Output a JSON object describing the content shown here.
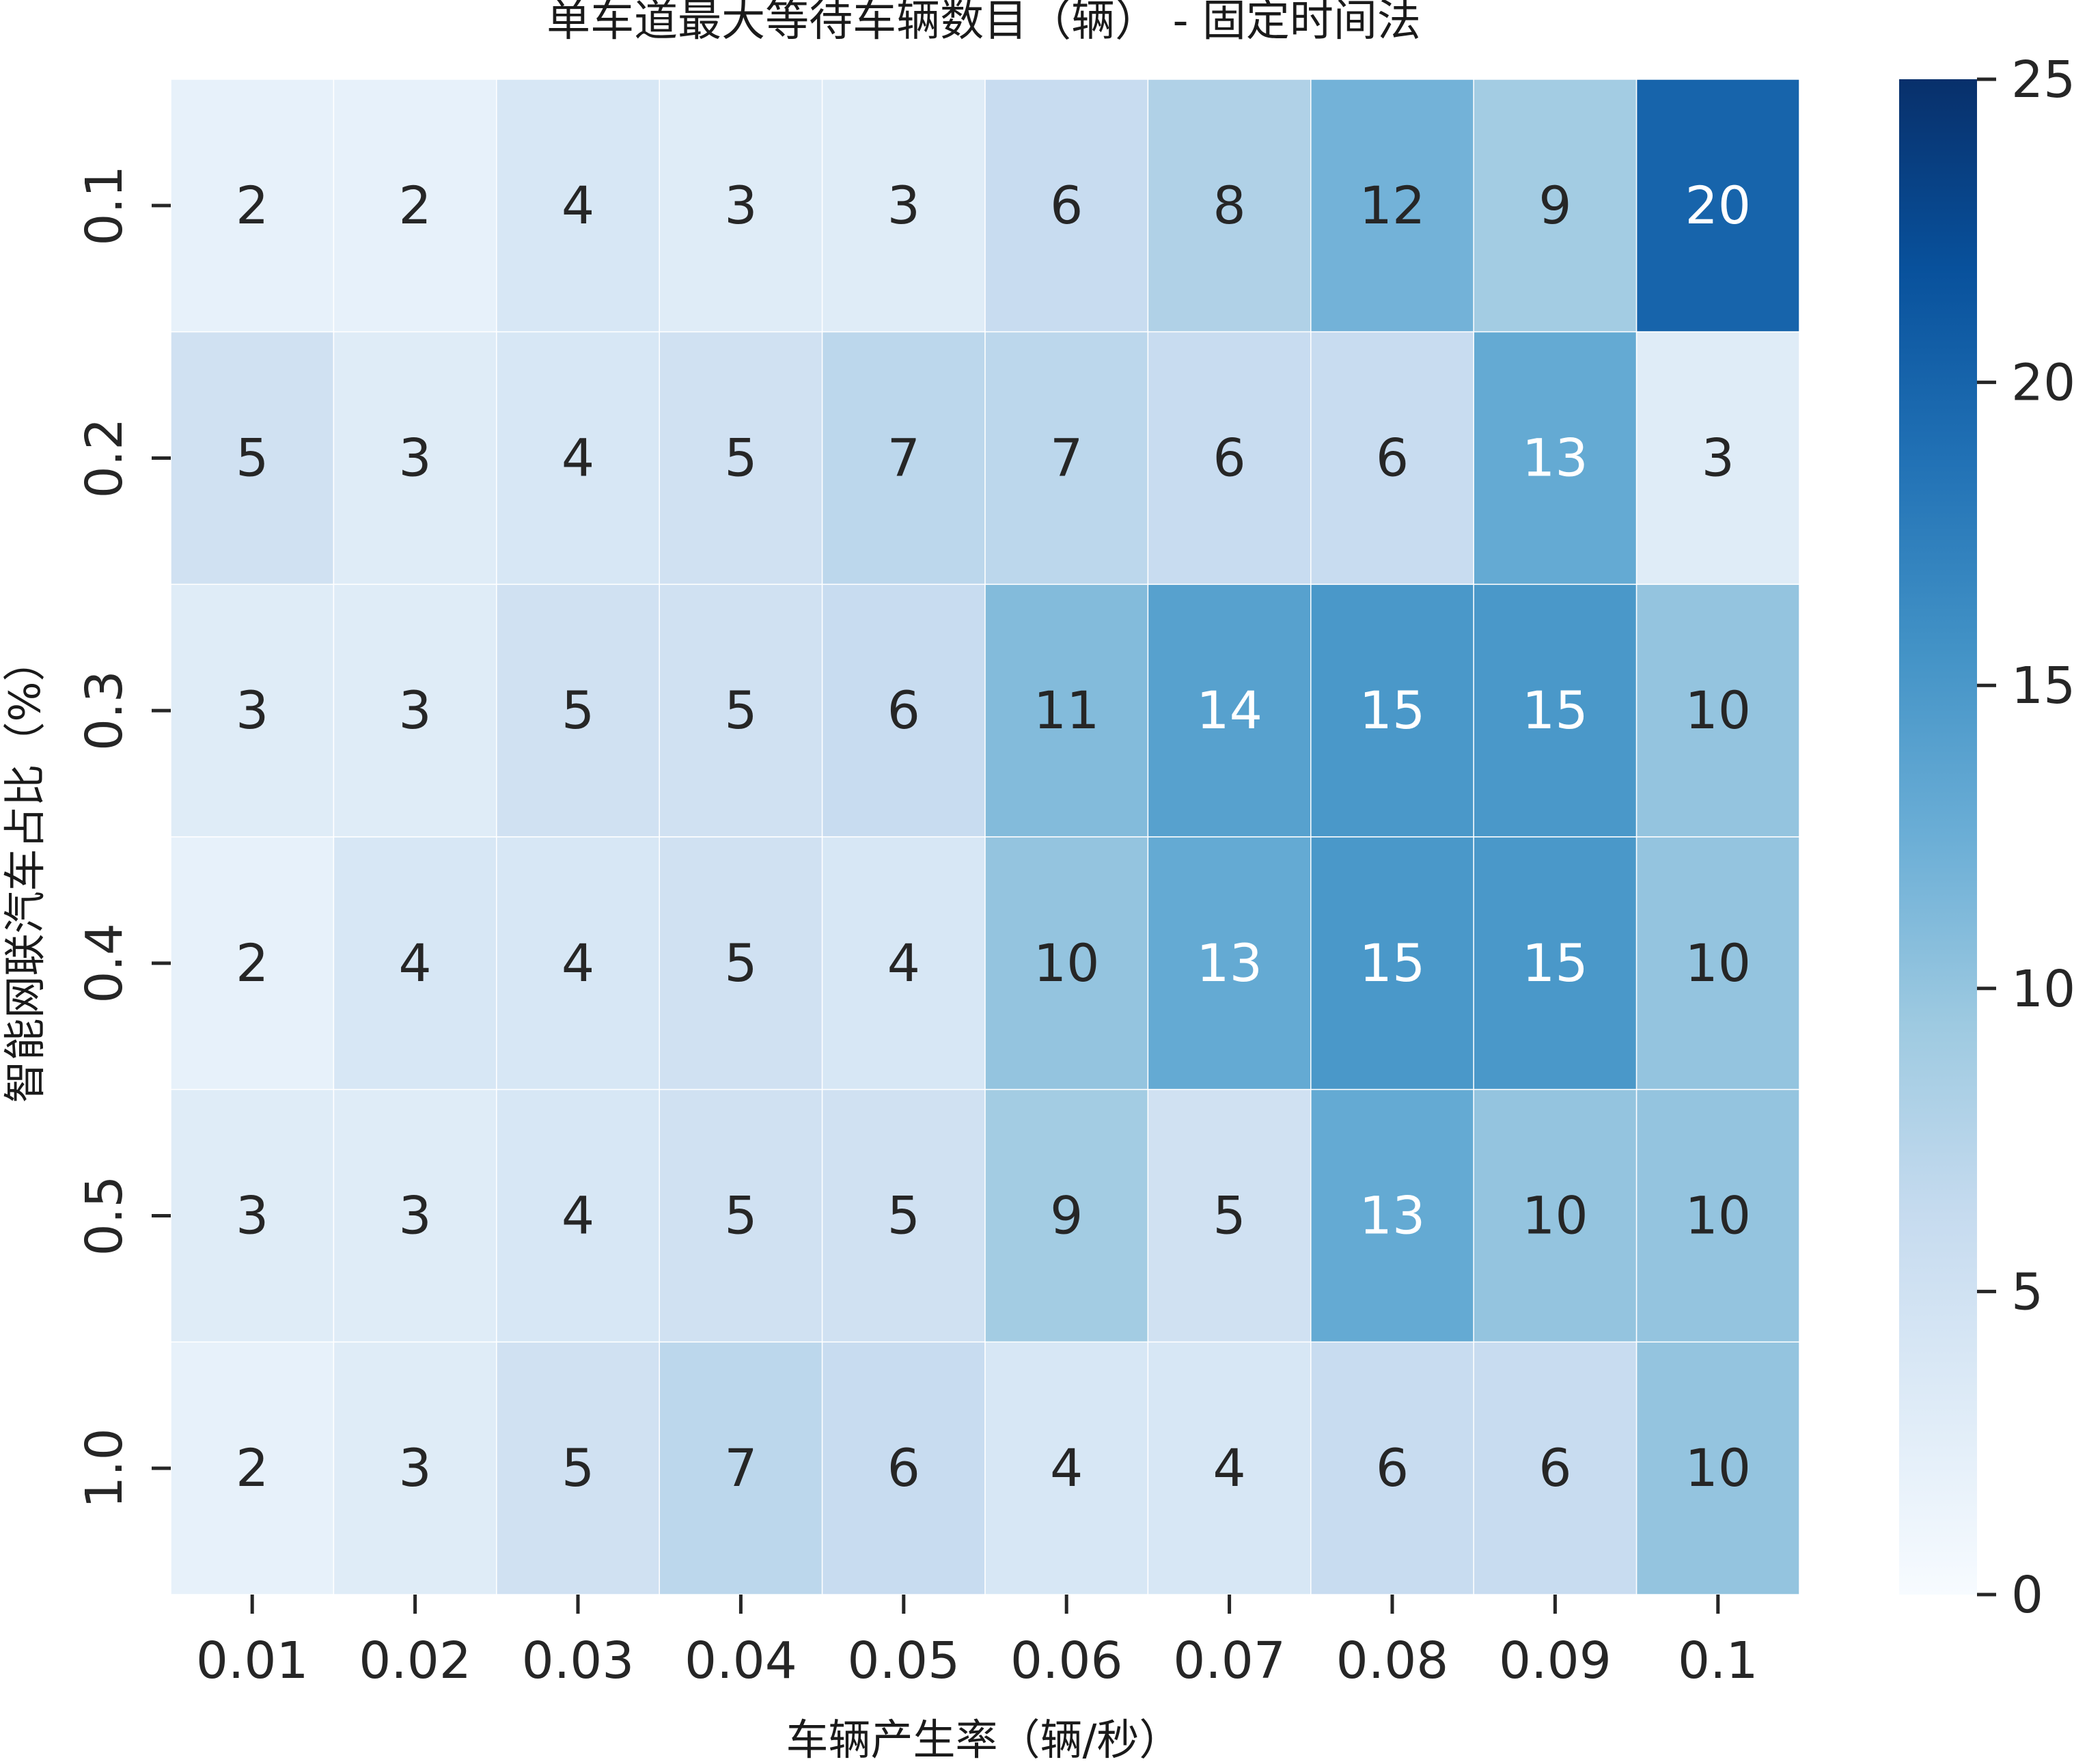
{
  "chart_data": {
    "type": "heatmap",
    "title": "单车道最大等待车辆数目（辆） - 固定时间法",
    "xlabel": "车辆产生率（辆/秒）",
    "ylabel": "智能网联汽车占比（%）",
    "x_categories": [
      "0.01",
      "0.02",
      "0.03",
      "0.04",
      "0.05",
      "0.06",
      "0.07",
      "0.08",
      "0.09",
      "0.1"
    ],
    "y_categories": [
      "0.1",
      "0.2",
      "0.3",
      "0.4",
      "0.5",
      "1.0"
    ],
    "values": [
      [
        2,
        2,
        4,
        3,
        3,
        6,
        8,
        12,
        9,
        20
      ],
      [
        5,
        3,
        4,
        5,
        7,
        7,
        6,
        6,
        13,
        3
      ],
      [
        3,
        3,
        5,
        5,
        6,
        11,
        14,
        15,
        15,
        10
      ],
      [
        2,
        4,
        4,
        5,
        4,
        10,
        13,
        15,
        15,
        10
      ],
      [
        3,
        3,
        4,
        5,
        5,
        9,
        5,
        13,
        10,
        10
      ],
      [
        2,
        3,
        5,
        7,
        6,
        4,
        4,
        6,
        6,
        10
      ]
    ],
    "colorbar": {
      "min": 0,
      "max": 25,
      "ticks": [
        "0",
        "5",
        "10",
        "15",
        "20",
        "25"
      ],
      "colormap": "Blues"
    }
  }
}
